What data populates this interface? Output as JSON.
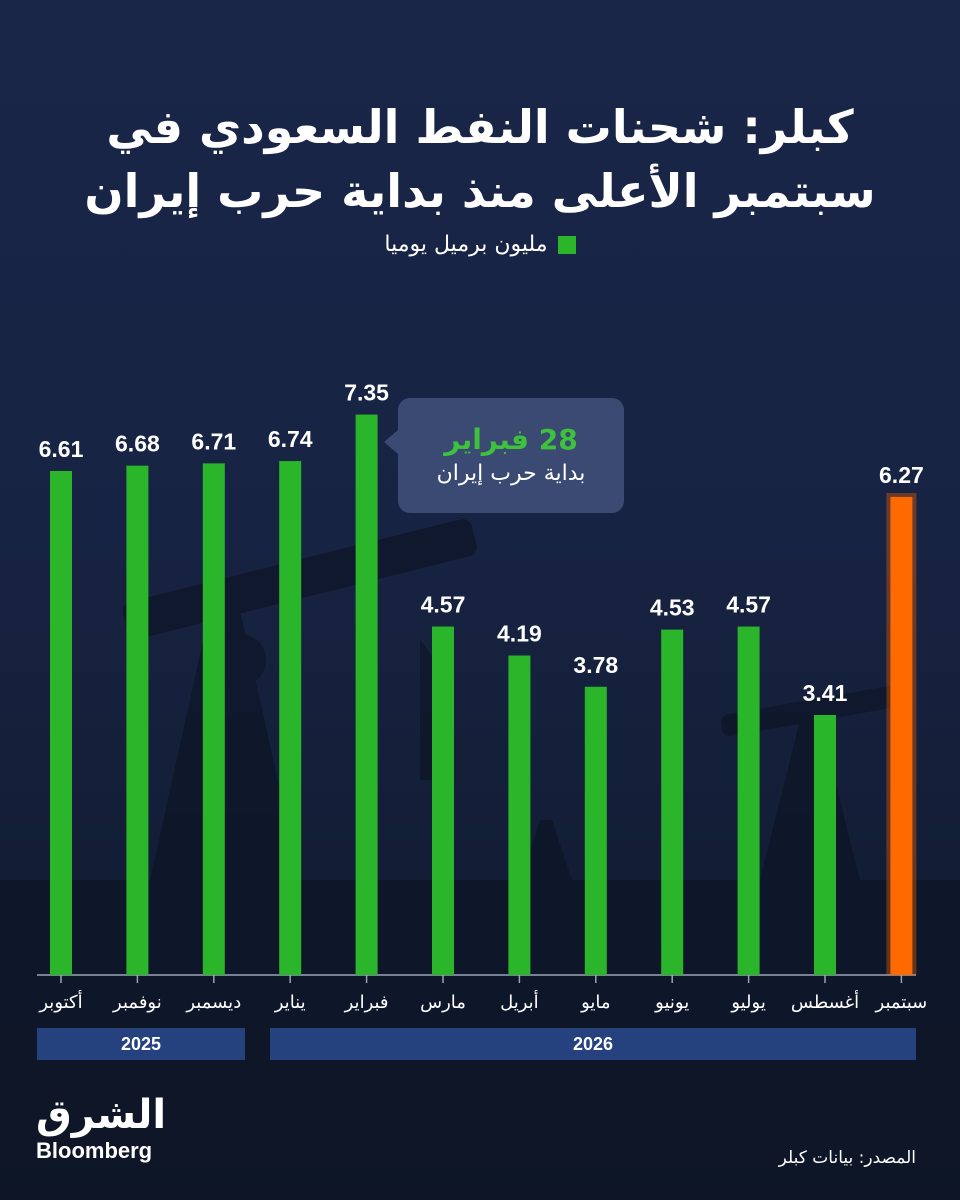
{
  "colors": {
    "background": "#172342",
    "bar": "#2bb52b",
    "highlight_bar": "#ff6a00",
    "year_band": "#25427e",
    "callout_bg": "#3a4a72",
    "callout_accent": "#3ec23e"
  },
  "title_lines": [
    "كبلر: شحنات النفط السعودي في",
    "سبتمبر الأعلى منذ بداية حرب إيران"
  ],
  "legend": {
    "label": "مليون برميل يوميا"
  },
  "chart_data": {
    "type": "bar",
    "title": "كبلر: شحنات النفط السعودي في سبتمبر الأعلى منذ بداية حرب إيران",
    "ylabel": "مليون برميل يوميا",
    "ylim": [
      0,
      8
    ],
    "grid": false,
    "legend_position": "top-center",
    "categories": [
      "أكتوبر",
      "نوفمبر",
      "ديسمبر",
      "يناير",
      "فبراير",
      "مارس",
      "أبريل",
      "مايو",
      "يونيو",
      "يوليو",
      "أغسطس",
      "سبتمبر"
    ],
    "values": [
      6.61,
      6.68,
      6.71,
      6.74,
      7.35,
      4.57,
      4.19,
      3.78,
      4.53,
      4.57,
      3.41,
      6.27
    ],
    "value_labels": [
      "6.61",
      "6.68",
      "6.71",
      "6.74",
      "7.35",
      "4.57",
      "4.19",
      "3.78",
      "4.53",
      "4.57",
      "3.41",
      "6.27"
    ],
    "highlight_index": 11,
    "year_groups": [
      {
        "label": "2025",
        "from": 0,
        "to": 2
      },
      {
        "label": "2026",
        "from": 3,
        "to": 11
      }
    ],
    "annotation": {
      "title": "28 فبراير",
      "text": "بداية حرب إيران",
      "after_category_index": 4
    }
  },
  "source": "المصدر: بيانات كبلر",
  "logo": {
    "arabic": "الشرق",
    "english": "Bloomberg"
  }
}
